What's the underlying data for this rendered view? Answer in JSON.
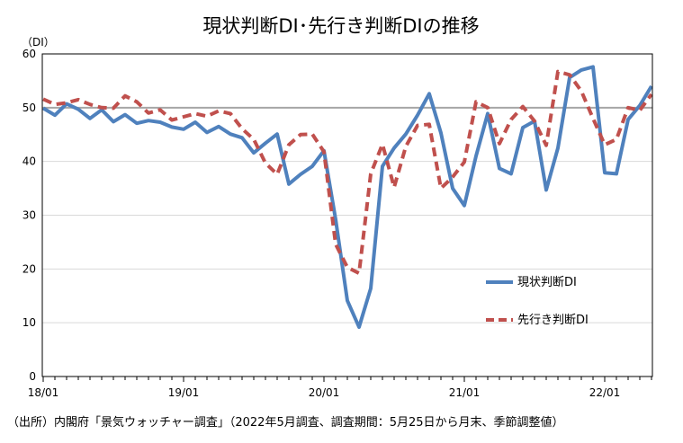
{
  "chart_data": {
    "type": "line",
    "title": "現状判断DI･先行き判断DIの推移",
    "unit_label": "（DI）",
    "source_note": "（出所）内閣府「景気ウォッチャー調査」（2022年5月調査、調査期間：5月25日から月末、季節調整値）",
    "ylim": [
      0,
      60
    ],
    "yticks": [
      0,
      10,
      20,
      30,
      40,
      50,
      60
    ],
    "x_tick_labels": [
      "18/01",
      "19/01",
      "20/01",
      "21/01",
      "22/01"
    ],
    "x_tick_indices": [
      0,
      12,
      24,
      36,
      48
    ],
    "reference_line": 50,
    "grid": "horizontal",
    "legend_position": "right",
    "series": [
      {
        "name": "現状判断DI",
        "color": "#4f81bd",
        "style": "solid",
        "values": [
          49.9,
          48.6,
          50.7,
          49.7,
          48.0,
          49.6,
          47.4,
          48.7,
          47.1,
          47.6,
          47.3,
          46.4,
          46.0,
          47.3,
          45.4,
          46.5,
          45.1,
          44.4,
          41.6,
          43.4,
          45.1,
          35.8,
          37.6,
          39.1,
          42.0,
          29.2,
          14.1,
          9.2,
          16.4,
          39.1,
          42.5,
          45.1,
          48.6,
          52.6,
          45.3,
          35.0,
          31.8,
          41.0,
          48.9,
          38.7,
          37.7,
          46.3,
          47.5,
          34.7,
          42.5,
          55.6,
          57.0,
          57.6,
          37.9,
          37.7,
          47.8,
          50.4,
          54.0
        ]
      },
      {
        "name": "先行き判断DI",
        "color": "#c0504d",
        "style": "dashed",
        "values": [
          51.6,
          50.6,
          50.9,
          51.5,
          50.6,
          50.0,
          49.9,
          52.2,
          51.1,
          49.0,
          49.6,
          47.7,
          48.3,
          48.9,
          48.4,
          49.4,
          48.9,
          46.1,
          44.1,
          39.7,
          37.6,
          43.1,
          45.0,
          45.1,
          41.8,
          24.6,
          20.3,
          19.2,
          37.7,
          43.2,
          35.2,
          42.8,
          46.7,
          46.9,
          35.0,
          37.1,
          39.9,
          51.1,
          50.0,
          43.3,
          47.8,
          50.2,
          47.5,
          43.0,
          56.7,
          56.1,
          53.1,
          48.0,
          43.1,
          44.1,
          50.0,
          49.5,
          52.5
        ]
      }
    ]
  }
}
